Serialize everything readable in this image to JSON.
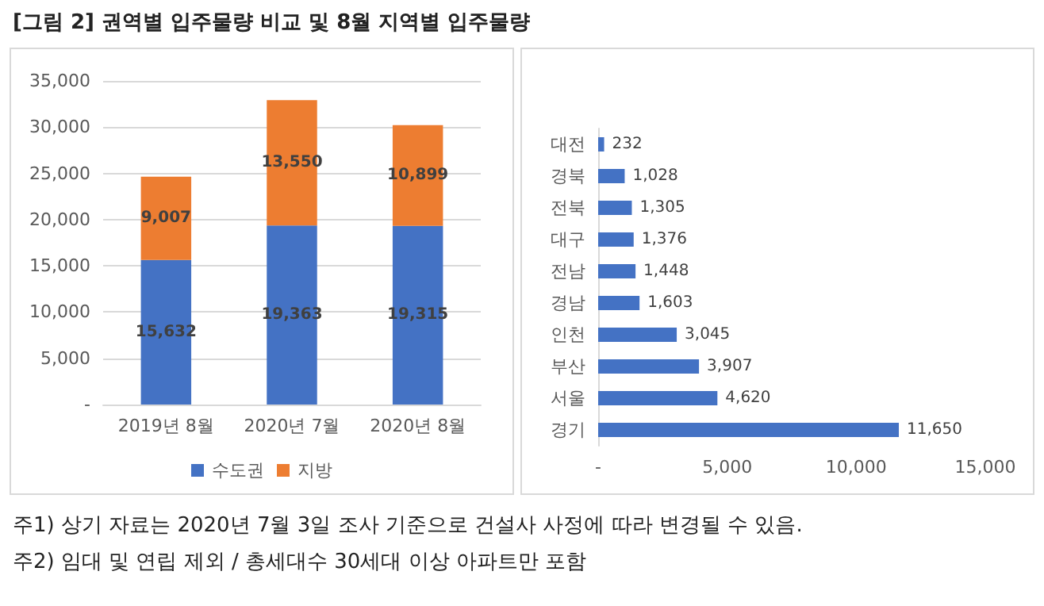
{
  "chart_data": [
    {
      "type": "bar",
      "title": "[그림 2] 권역별 입주물량 비교 및 8월 지역별 입주물량",
      "categories": [
        "2019년 8월",
        "2020년 7월",
        "2020년 8월"
      ],
      "stacked": true,
      "series": [
        {
          "name": "수도권",
          "color": "#4472c4",
          "values": [
            15632,
            19363,
            19315
          ],
          "value_labels": [
            "15,632",
            "19,363",
            "19,315"
          ]
        },
        {
          "name": "지방",
          "color": "#ed7d31",
          "values": [
            9007,
            13550,
            10899
          ],
          "value_labels": [
            "9,007",
            "13,550",
            "10,899"
          ]
        }
      ],
      "ylim": [
        0,
        35000
      ],
      "yticks": [
        {
          "value": 0,
          "label": "-"
        },
        {
          "value": 5000,
          "label": "5,000"
        },
        {
          "value": 10000,
          "label": "10,000"
        },
        {
          "value": 15000,
          "label": "15,000"
        },
        {
          "value": 20000,
          "label": "20,000"
        },
        {
          "value": 25000,
          "label": "25,000"
        },
        {
          "value": 30000,
          "label": "30,000"
        },
        {
          "value": 35000,
          "label": "35,000"
        }
      ],
      "grid": "y",
      "legend": "bottom",
      "annotations": [
        "주1) 상기 자료는 2020년 7월 3일 조사 기준으로 건설사 사정에 따라 변경될 수 있음.",
        "주2) 임대 및 연립 제외 / 총세대수 30세대 이상 아파트만 포함"
      ]
    },
    {
      "type": "bar",
      "orientation": "horizontal",
      "categories": [
        "대전",
        "경북",
        "전북",
        "대구",
        "전남",
        "경남",
        "인천",
        "부산",
        "서울",
        "경기"
      ],
      "color": "#4472c4",
      "values": [
        232,
        1028,
        1305,
        1376,
        1448,
        1603,
        3045,
        3907,
        4620,
        11650
      ],
      "value_labels": [
        "232",
        "1,028",
        "1,305",
        "1,376",
        "1,448",
        "1,603",
        "3,045",
        "3,907",
        "4,620",
        "11,650"
      ],
      "xlim": [
        0,
        15000
      ],
      "xticks": [
        {
          "value": 0,
          "label": "-"
        },
        {
          "value": 5000,
          "label": "5,000"
        },
        {
          "value": 10000,
          "label": "10,000"
        },
        {
          "value": 15000,
          "label": "15,000"
        }
      ]
    }
  ]
}
